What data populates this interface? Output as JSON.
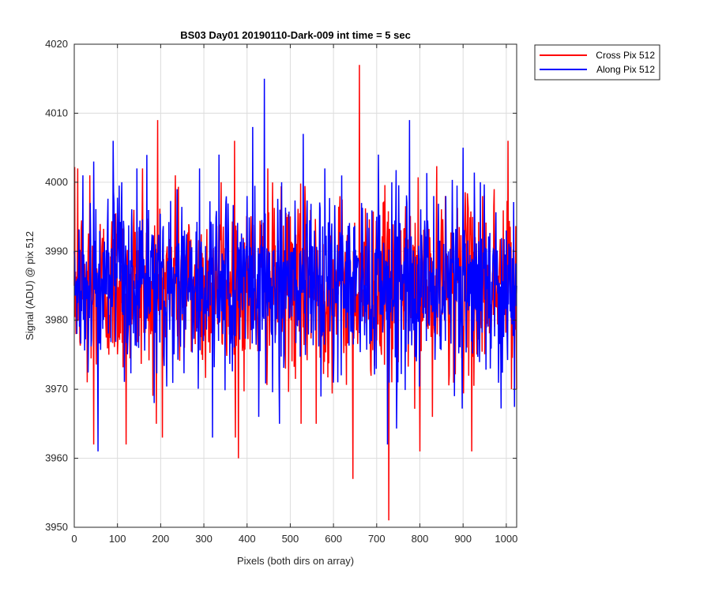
{
  "chart_data": {
    "type": "line",
    "title": "BS03 Day01 20190110-Dark-009 int time = 5 sec",
    "xlabel": "Pixels (both dirs on array)",
    "ylabel": "Signal (ADU) @ pix 512",
    "xlim": [
      0,
      1024
    ],
    "ylim": [
      3950,
      4020
    ],
    "xticks": [
      0,
      100,
      200,
      300,
      400,
      500,
      600,
      700,
      800,
      900,
      1000
    ],
    "yticks": [
      3950,
      3960,
      3970,
      3980,
      3990,
      4000,
      4010,
      4020
    ],
    "grid": true,
    "legend_position": "outside-top-right",
    "series": [
      {
        "name": "Cross Pix 512",
        "color": "#ff0000",
        "mean": 3985,
        "points": [
          [
            0,
            3985
          ],
          [
            8,
            4002
          ],
          [
            30,
            3971
          ],
          [
            36,
            4001
          ],
          [
            45,
            3962
          ],
          [
            120,
            3962
          ],
          [
            138,
            3996
          ],
          [
            158,
            4002
          ],
          [
            190,
            3965
          ],
          [
            193,
            4009
          ],
          [
            234,
            4001
          ],
          [
            295,
            3975
          ],
          [
            340,
            4000
          ],
          [
            371,
            4006
          ],
          [
            380,
            3960
          ],
          [
            448,
            4002
          ],
          [
            525,
            3965
          ],
          [
            547,
            3996
          ],
          [
            560,
            3965
          ],
          [
            645,
            3957
          ],
          [
            660,
            4017
          ],
          [
            728,
            3951
          ],
          [
            735,
            3971
          ],
          [
            800,
            3961
          ],
          [
            829,
            3966
          ],
          [
            859,
            3998
          ],
          [
            920,
            3961
          ],
          [
            945,
            3998
          ],
          [
            972,
            3999
          ],
          [
            1004,
            4006
          ],
          [
            1012,
            3970
          ],
          [
            1024,
            3970
          ]
        ]
      },
      {
        "name": "Along Pix 512",
        "color": "#0000ff",
        "mean": 3985,
        "points": [
          [
            0,
            3990
          ],
          [
            20,
            4001
          ],
          [
            45,
            4003
          ],
          [
            55,
            3961
          ],
          [
            90,
            4006
          ],
          [
            110,
            4000
          ],
          [
            145,
            4002
          ],
          [
            185,
            3968
          ],
          [
            238,
            3999
          ],
          [
            255,
            3993
          ],
          [
            290,
            4002
          ],
          [
            320,
            3963
          ],
          [
            350,
            3994
          ],
          [
            400,
            3998
          ],
          [
            413,
            4008
          ],
          [
            427,
            3966
          ],
          [
            440,
            4015
          ],
          [
            450,
            3990
          ],
          [
            475,
            3965
          ],
          [
            480,
            4000
          ],
          [
            520,
            3980
          ],
          [
            530,
            4007
          ],
          [
            550,
            3985
          ],
          [
            580,
            4002
          ],
          [
            610,
            3971
          ],
          [
            665,
            3997
          ],
          [
            700,
            3995
          ],
          [
            725,
            3962
          ],
          [
            735,
            4000
          ],
          [
            770,
            3997
          ],
          [
            776,
            4009
          ],
          [
            808,
            3985
          ],
          [
            832,
            3998
          ],
          [
            860,
            3998
          ],
          [
            880,
            3969
          ],
          [
            900,
            4005
          ],
          [
            940,
            4000
          ],
          [
            1000,
            3993
          ],
          [
            1024,
            3985
          ]
        ]
      }
    ]
  }
}
